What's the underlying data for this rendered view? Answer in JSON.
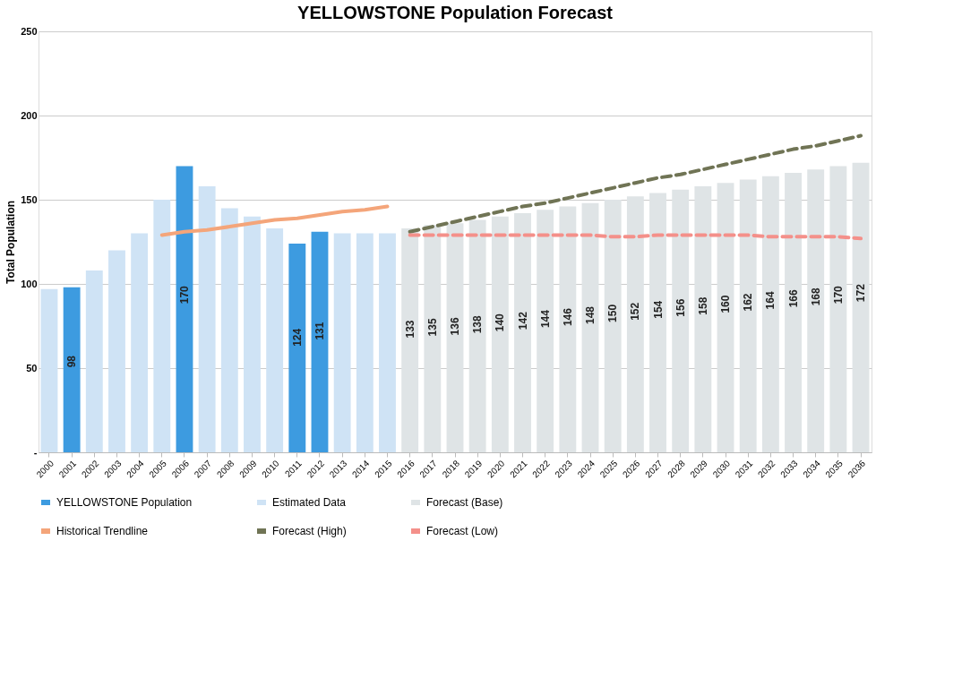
{
  "chart_data": {
    "type": "bar",
    "title": "YELLOWSTONE Population Forecast",
    "ylabel": "Total Population",
    "categories": [
      "2000",
      "2001",
      "2002",
      "2003",
      "2004",
      "2005",
      "2006",
      "2007",
      "2008",
      "2009",
      "2010",
      "2011",
      "2012",
      "2013",
      "2014",
      "2015",
      "2016",
      "2017",
      "2018",
      "2019",
      "2020",
      "2021",
      "2022",
      "2023",
      "2024",
      "2025",
      "2026",
      "2027",
      "2028",
      "2029",
      "2030",
      "2031",
      "2032",
      "2033",
      "2034",
      "2035",
      "2036"
    ],
    "ylim": [
      0,
      250
    ],
    "yticks": [
      {
        "value": 0,
        "label": "-"
      },
      50,
      100,
      150,
      200,
      250
    ],
    "grid": "y",
    "legend": "bottom",
    "series": [
      {
        "name": "YELLOWSTONE Population",
        "color": "#3d9be0",
        "values": [
          null,
          98,
          null,
          null,
          null,
          null,
          170,
          null,
          null,
          null,
          null,
          124,
          131,
          null,
          null,
          null,
          null,
          null,
          null,
          null,
          null,
          null,
          null,
          null,
          null,
          null,
          null,
          null,
          null,
          null,
          null,
          null,
          null,
          null,
          null,
          null,
          null
        ],
        "value_labels": [
          null,
          "98",
          null,
          null,
          null,
          null,
          "170",
          null,
          null,
          null,
          null,
          "124",
          "131",
          null,
          null,
          null,
          null,
          null,
          null,
          null,
          null,
          null,
          null,
          null,
          null,
          null,
          null,
          null,
          null,
          null,
          null,
          null,
          null,
          null,
          null,
          null,
          null
        ]
      },
      {
        "name": "Estimated Data",
        "color": "#cfe3f5",
        "values": [
          97,
          null,
          108,
          120,
          130,
          150,
          null,
          158,
          145,
          140,
          133,
          null,
          null,
          130,
          130,
          130,
          null,
          null,
          null,
          null,
          null,
          null,
          null,
          null,
          null,
          null,
          null,
          null,
          null,
          null,
          null,
          null,
          null,
          null,
          null,
          null,
          null
        ]
      },
      {
        "name": "Forecast (Base)",
        "color": "#dfe4e6",
        "values": [
          null,
          null,
          null,
          null,
          null,
          null,
          null,
          null,
          null,
          null,
          null,
          null,
          null,
          null,
          null,
          null,
          133,
          135,
          136,
          138,
          140,
          142,
          144,
          146,
          148,
          150,
          152,
          154,
          156,
          158,
          160,
          162,
          164,
          166,
          168,
          170,
          172
        ],
        "value_labels": [
          null,
          null,
          null,
          null,
          null,
          null,
          null,
          null,
          null,
          null,
          null,
          null,
          null,
          null,
          null,
          null,
          "133",
          "135",
          "136",
          "138",
          "140",
          "142",
          "144",
          "146",
          "148",
          "150",
          "152",
          "154",
          "156",
          "158",
          "160",
          "162",
          "164",
          "166",
          "168",
          "170",
          "172"
        ]
      },
      {
        "name": "Historical Trendline",
        "type": "line",
        "color": "#f4a57a",
        "line_style": "solid",
        "values": [
          null,
          null,
          null,
          null,
          null,
          129,
          131,
          132,
          134,
          136,
          138,
          139,
          141,
          143,
          144,
          146,
          null,
          null,
          null,
          null,
          null,
          null,
          null,
          null,
          null,
          null,
          null,
          null,
          null,
          null,
          null,
          null,
          null,
          null,
          null,
          null,
          null
        ]
      },
      {
        "name": "Forecast (High)",
        "type": "line",
        "color": "#707455",
        "line_style": "dashed",
        "values": [
          null,
          null,
          null,
          null,
          null,
          null,
          null,
          null,
          null,
          null,
          null,
          null,
          null,
          null,
          null,
          null,
          131,
          134,
          137,
          140,
          143,
          146,
          148,
          151,
          154,
          157,
          160,
          163,
          165,
          168,
          171,
          174,
          177,
          180,
          182,
          185,
          188
        ]
      },
      {
        "name": "Forecast (Low)",
        "type": "line",
        "color": "#f4908a",
        "line_style": "dashed",
        "values": [
          null,
          null,
          null,
          null,
          null,
          null,
          null,
          null,
          null,
          null,
          null,
          null,
          null,
          null,
          null,
          null,
          129,
          129,
          129,
          129,
          129,
          129,
          129,
          129,
          129,
          128,
          128,
          129,
          129,
          129,
          129,
          129,
          128,
          128,
          128,
          128,
          127
        ]
      }
    ]
  }
}
